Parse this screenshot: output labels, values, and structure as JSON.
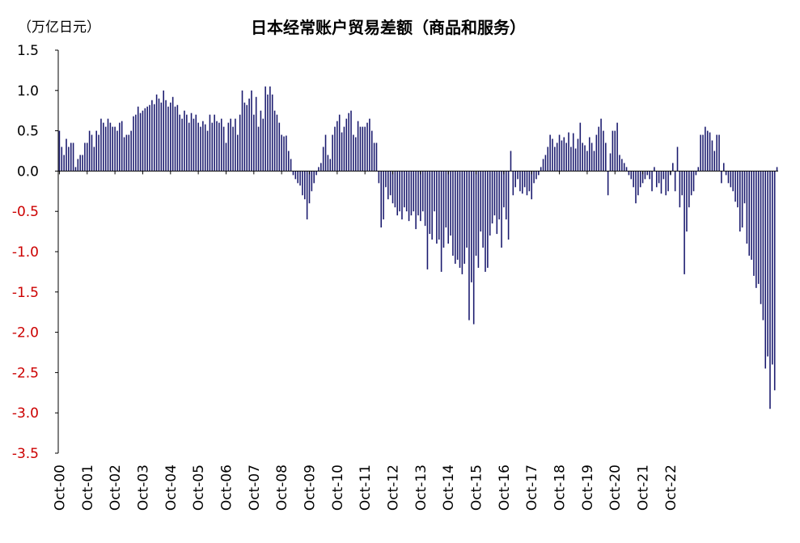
{
  "chart_data": {
    "type": "bar",
    "title": "日本经常账户贸易差额（商品和服务）",
    "unit_label": "（万亿日元）",
    "xlabel": "",
    "ylabel": "",
    "ylim": [
      -3.5,
      1.5
    ],
    "yticks": [
      1.5,
      1.0,
      0.5,
      0.0,
      -0.5,
      -1.0,
      -1.5,
      -2.0,
      -2.5,
      -3.0,
      -3.5
    ],
    "ytick_labels": [
      "1.5",
      "1.0",
      "0.5",
      "0.0",
      "-0.5",
      "-1.0",
      "-1.5",
      "-2.0",
      "-2.5",
      "-3.0",
      "-3.5"
    ],
    "x_tick_labels": [
      "Oct-00",
      "Oct-01",
      "Oct-02",
      "Oct-03",
      "Oct-04",
      "Oct-05",
      "Oct-06",
      "Oct-07",
      "Oct-08",
      "Oct-09",
      "Oct-10",
      "Oct-11",
      "Oct-12",
      "Oct-13",
      "Oct-14",
      "Oct-15",
      "Oct-16",
      "Oct-17",
      "Oct-18",
      "Oct-19",
      "Oct-20",
      "Oct-21",
      "Oct-22"
    ],
    "grid": false,
    "legend": "none",
    "colors": {
      "bar": "#1a1a6e",
      "positive_tick": "#000000",
      "negative_tick": "#cc0000",
      "axis": "#000000"
    },
    "series": [
      {
        "values": [
          0.5,
          0.3,
          0.2,
          0.4,
          0.3,
          0.35,
          0.35,
          0.05,
          0.15,
          0.2,
          0.2,
          0.35,
          0.35,
          0.5,
          0.45,
          0.3,
          0.5,
          0.45,
          0.65,
          0.6,
          0.55,
          0.65,
          0.6,
          0.55,
          0.55,
          0.5,
          0.6,
          0.62,
          0.42,
          0.45,
          0.45,
          0.5,
          0.68,
          0.7,
          0.8,
          0.72,
          0.75,
          0.78,
          0.8,
          0.82,
          0.88,
          0.83,
          0.95,
          0.9,
          0.85,
          1.0,
          0.88,
          0.8,
          0.85,
          0.92,
          0.8,
          0.82,
          0.7,
          0.65,
          0.75,
          0.7,
          0.6,
          0.72,
          0.65,
          0.7,
          0.6,
          0.55,
          0.62,
          0.58,
          0.5,
          0.7,
          0.6,
          0.7,
          0.62,
          0.6,
          0.65,
          0.55,
          0.35,
          0.6,
          0.65,
          0.55,
          0.65,
          0.45,
          0.7,
          1.0,
          0.85,
          0.82,
          0.9,
          1.0,
          0.7,
          0.92,
          0.55,
          0.75,
          0.65,
          1.05,
          0.95,
          1.05,
          0.95,
          0.75,
          0.7,
          0.6,
          0.45,
          0.43,
          0.44,
          0.25,
          0.15,
          -0.05,
          -0.1,
          -0.15,
          -0.18,
          -0.3,
          -0.35,
          -0.6,
          -0.4,
          -0.25,
          -0.15,
          -0.05,
          0.05,
          0.1,
          0.3,
          0.45,
          0.2,
          0.15,
          0.45,
          0.55,
          0.62,
          0.7,
          0.48,
          0.55,
          0.65,
          0.72,
          0.75,
          0.45,
          0.42,
          0.62,
          0.55,
          0.55,
          0.55,
          0.6,
          0.65,
          0.5,
          0.35,
          0.35,
          -0.15,
          -0.7,
          -0.6,
          -0.2,
          -0.35,
          -0.3,
          -0.4,
          -0.45,
          -0.55,
          -0.5,
          -0.6,
          -0.45,
          -0.5,
          -0.62,
          -0.55,
          -0.5,
          -0.72,
          -0.55,
          -0.62,
          -0.5,
          -0.68,
          -1.22,
          -0.78,
          -0.85,
          -0.5,
          -0.9,
          -0.85,
          -1.25,
          -0.95,
          -0.7,
          -0.9,
          -0.8,
          -1.05,
          -1.15,
          -1.1,
          -1.2,
          -1.28,
          -1.15,
          -0.95,
          -1.85,
          -1.38,
          -1.9,
          -1.05,
          -1.2,
          -0.75,
          -0.95,
          -1.25,
          -1.2,
          -0.8,
          -0.65,
          -0.55,
          -0.78,
          -0.6,
          -0.95,
          -0.45,
          -0.6,
          -0.85,
          0.25,
          -0.3,
          -0.2,
          -0.1,
          -0.25,
          -0.28,
          -0.2,
          -0.3,
          -0.25,
          -0.35,
          -0.15,
          -0.1,
          -0.05,
          0.05,
          0.15,
          0.2,
          0.3,
          0.45,
          0.4,
          0.3,
          0.35,
          0.45,
          0.38,
          0.42,
          0.35,
          0.48,
          0.3,
          0.47,
          0.28,
          0.4,
          0.6,
          0.35,
          0.32,
          0.25,
          0.42,
          0.35,
          0.25,
          0.45,
          0.55,
          0.65,
          0.5,
          0.35,
          -0.3,
          0.22,
          0.5,
          0.5,
          0.6,
          0.2,
          0.15,
          0.1,
          0.05,
          -0.05,
          -0.1,
          -0.2,
          -0.4,
          -0.3,
          -0.2,
          -0.15,
          -0.1,
          -0.05,
          -0.1,
          -0.25,
          0.05,
          -0.2,
          -0.15,
          -0.28,
          -0.1,
          -0.3,
          -0.25,
          -0.05,
          0.1,
          -0.25,
          0.3,
          -0.45,
          -0.3,
          -1.28,
          -0.75,
          -0.45,
          -0.3,
          -0.25,
          -0.05,
          0.05,
          0.45,
          0.45,
          0.55,
          0.5,
          0.48,
          0.38,
          0.25,
          0.45,
          0.45,
          -0.15,
          0.1,
          -0.05,
          -0.15,
          -0.2,
          -0.25,
          -0.38,
          -0.45,
          -0.75,
          -0.7,
          -0.4,
          -0.9,
          -1.05,
          -1.1,
          -1.3,
          -1.45,
          -1.4,
          -1.65,
          -1.85,
          -2.45,
          -2.3,
          -2.95,
          -2.4,
          -2.72,
          0.05
        ]
      }
    ]
  }
}
